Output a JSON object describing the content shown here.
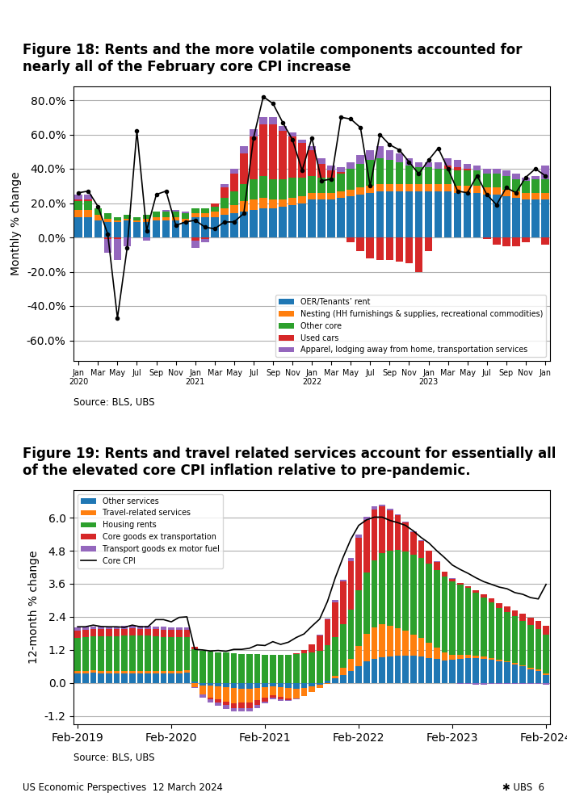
{
  "chart_data": [
    {
      "type": "bar",
      "stacked": true,
      "title": "Figure 18: Rents and the more volatile components accounted for nearly all of the February core CPI increase",
      "ylabel": "Monthly % change",
      "annotations": [
        "Source: BLS, UBS"
      ],
      "categories": [
        "Jan\n2020",
        null,
        "Mar",
        null,
        "May",
        null,
        "Jul",
        null,
        "Sep",
        null,
        "Nov",
        null,
        "Jan\n2021",
        null,
        "Mar",
        null,
        "May",
        null,
        "Jul",
        null,
        "Sep",
        null,
        "Nov",
        null,
        "Jan\n2022",
        null,
        "Mar",
        null,
        "May",
        null,
        "Jul",
        null,
        "Sep",
        null,
        "Nov",
        null,
        "Jan\n2023",
        null,
        "Mar",
        null,
        "May",
        null,
        "Jul",
        null,
        "Sep",
        null,
        "Nov",
        null,
        "Jan"
      ],
      "ylim": [
        -0.72,
        0.88
      ],
      "yticks": [
        {
          "value": -0.6,
          "label": "-60.0%"
        },
        {
          "value": -0.4,
          "label": "-40.0%"
        },
        {
          "value": -0.2,
          "label": "-20.0%"
        },
        {
          "value": 0.0,
          "label": "0.0%"
        },
        {
          "value": 0.2,
          "label": "20.0%"
        },
        {
          "value": 0.4,
          "label": "40.0%"
        },
        {
          "value": 0.6,
          "label": "60.0%"
        },
        {
          "value": 0.8,
          "label": "80.0%"
        }
      ],
      "grid": true,
      "legend": "lower right",
      "series": [
        {
          "name": "OER/Tenants’ rent",
          "type": "bar",
          "color": "#1f77b4",
          "values": [
            0.12,
            0.12,
            0.1,
            0.09,
            0.09,
            0.1,
            0.09,
            0.09,
            0.1,
            0.1,
            0.1,
            0.09,
            0.12,
            0.12,
            0.12,
            0.13,
            0.14,
            0.15,
            0.16,
            0.17,
            0.17,
            0.18,
            0.19,
            0.2,
            0.22,
            0.22,
            0.22,
            0.23,
            0.24,
            0.25,
            0.26,
            0.27,
            0.27,
            0.27,
            0.27,
            0.27,
            0.27,
            0.27,
            0.27,
            0.26,
            0.26,
            0.26,
            0.25,
            0.25,
            0.24,
            0.23,
            0.22,
            0.22,
            0.22
          ]
        },
        {
          "name": "Nesting (HH furnishings & supplies, recreational commodities)",
          "type": "bar",
          "color": "#ff7f0e",
          "values": [
            0.04,
            0.04,
            0.03,
            0.02,
            0.01,
            0.01,
            0.01,
            0.02,
            0.02,
            0.02,
            0.02,
            0.02,
            0.02,
            0.02,
            0.03,
            0.04,
            0.05,
            0.06,
            0.06,
            0.06,
            0.05,
            0.04,
            0.04,
            0.04,
            0.04,
            0.04,
            0.04,
            0.04,
            0.04,
            0.04,
            0.04,
            0.04,
            0.04,
            0.04,
            0.04,
            0.04,
            0.04,
            0.04,
            0.04,
            0.04,
            0.04,
            0.04,
            0.04,
            0.04,
            0.04,
            0.04,
            0.04,
            0.04,
            0.04
          ]
        },
        {
          "name": "Other core",
          "type": "bar",
          "color": "#2ca02c",
          "values": [
            0.05,
            0.05,
            0.04,
            0.03,
            0.02,
            0.02,
            0.02,
            0.02,
            0.03,
            0.03,
            0.03,
            0.03,
            0.03,
            0.03,
            0.03,
            0.06,
            0.08,
            0.1,
            0.12,
            0.13,
            0.12,
            0.12,
            0.12,
            0.11,
            0.1,
            0.09,
            0.09,
            0.1,
            0.12,
            0.14,
            0.15,
            0.15,
            0.14,
            0.13,
            0.11,
            0.1,
            0.1,
            0.09,
            0.09,
            0.09,
            0.09,
            0.09,
            0.08,
            0.08,
            0.08,
            0.07,
            0.07,
            0.08,
            0.08
          ]
        },
        {
          "name": "Used cars",
          "type": "bar",
          "color": "#d62728",
          "values": [
            0.01,
            0.01,
            0.0,
            -0.01,
            -0.01,
            0.0,
            0.0,
            0.0,
            0.0,
            0.0,
            0.0,
            0.0,
            -0.02,
            -0.01,
            0.02,
            0.06,
            0.1,
            0.18,
            0.25,
            0.3,
            0.32,
            0.28,
            0.24,
            0.2,
            0.15,
            0.08,
            0.04,
            0.01,
            -0.03,
            -0.08,
            -0.12,
            -0.13,
            -0.13,
            -0.14,
            -0.15,
            -0.2,
            -0.08,
            0.0,
            0.02,
            0.02,
            0.01,
            0.0,
            -0.01,
            -0.04,
            -0.05,
            -0.05,
            -0.03,
            0.0,
            -0.04
          ]
        },
        {
          "name": "Apparel, lodging away from home, transportation services",
          "type": "bar",
          "color": "#9467bd",
          "values": [
            0.03,
            0.03,
            0.0,
            -0.08,
            -0.12,
            -0.05,
            0.0,
            -0.02,
            0.0,
            0.01,
            0.01,
            0.01,
            -0.04,
            -0.02,
            0.0,
            0.02,
            0.03,
            0.04,
            0.04,
            0.04,
            0.04,
            0.03,
            0.02,
            0.02,
            0.02,
            0.03,
            0.03,
            0.03,
            0.04,
            0.05,
            0.06,
            0.07,
            0.06,
            0.05,
            0.04,
            0.03,
            0.03,
            0.04,
            0.04,
            0.04,
            0.03,
            0.03,
            0.03,
            0.03,
            0.03,
            0.03,
            0.02,
            0.02,
            0.08
          ]
        },
        {
          "type": "line",
          "color": "#000000",
          "marker": "circle",
          "values": [
            0.26,
            0.27,
            0.18,
            0.02,
            -0.47,
            -0.06,
            0.62,
            0.04,
            0.25,
            0.27,
            0.07,
            0.09,
            0.1,
            0.06,
            0.05,
            0.09,
            0.09,
            0.14,
            0.58,
            0.82,
            0.78,
            0.67,
            0.57,
            0.39,
            0.58,
            0.33,
            0.34,
            0.7,
            0.69,
            0.64,
            0.3,
            0.6,
            0.54,
            0.51,
            0.44,
            0.37,
            0.45,
            0.52,
            0.4,
            0.27,
            0.26,
            0.36,
            0.25,
            0.19,
            0.29,
            0.26,
            0.35,
            0.4,
            0.36
          ]
        }
      ]
    },
    {
      "type": "bar",
      "stacked": true,
      "title": "Figure 19: Rents and travel related services account for essentially all of the elevated core CPI inflation relative to pre-pandemic.",
      "ylabel": "12-month % change",
      "annotations": [
        "Source: BLS, UBS",
        "US Economic Perspectives  12 March 2024",
        "✱ UBS  6"
      ],
      "categories": [
        "Feb-2019",
        null,
        null,
        null,
        null,
        null,
        null,
        null,
        null,
        null,
        null,
        null,
        "Feb-2020",
        null,
        null,
        null,
        null,
        null,
        null,
        null,
        null,
        null,
        null,
        null,
        "Feb-2021",
        null,
        null,
        null,
        null,
        null,
        null,
        null,
        null,
        null,
        null,
        null,
        "Feb-2022",
        null,
        null,
        null,
        null,
        null,
        null,
        null,
        null,
        null,
        null,
        null,
        "Feb-2023",
        null,
        null,
        null,
        null,
        null,
        null,
        null,
        null,
        null,
        null,
        null,
        "Feb-2024"
      ],
      "ylim": [
        -1.5,
        7.0
      ],
      "yticks": [
        -1.2,
        {
          "value": 0.0,
          "label": "0.0"
        },
        1.2,
        2.4,
        3.6,
        4.8,
        {
          "value": 6.0,
          "label": "6.0"
        }
      ],
      "grid": true,
      "legend": "upper left",
      "series": [
        {
          "name": "Other services",
          "type": "bar",
          "color": "#1f77b4",
          "values": [
            0.35,
            0.36,
            0.37,
            0.36,
            0.35,
            0.35,
            0.35,
            0.36,
            0.35,
            0.36,
            0.35,
            0.35,
            0.35,
            0.36,
            0.38,
            0.04,
            -0.08,
            -0.1,
            -0.12,
            -0.15,
            -0.18,
            -0.2,
            -0.2,
            -0.18,
            -0.15,
            -0.12,
            -0.15,
            -0.18,
            -0.2,
            -0.18,
            -0.12,
            -0.05,
            0.08,
            0.18,
            0.3,
            0.42,
            0.62,
            0.78,
            0.88,
            0.94,
            0.95,
            0.98,
            1.0,
            0.98,
            0.95,
            0.9,
            0.86,
            0.82,
            0.85,
            0.88,
            0.9,
            0.9,
            0.88,
            0.85,
            0.8,
            0.75,
            0.68,
            0.6,
            0.5,
            0.42,
            0.28
          ]
        },
        {
          "name": "Travel-related services",
          "type": "bar",
          "color": "#ff7f0e",
          "values": [
            0.08,
            0.08,
            0.08,
            0.08,
            0.08,
            0.08,
            0.08,
            0.08,
            0.08,
            0.08,
            0.08,
            0.08,
            0.08,
            0.08,
            0.08,
            -0.15,
            -0.35,
            -0.42,
            -0.48,
            -0.52,
            -0.55,
            -0.52,
            -0.5,
            -0.45,
            -0.38,
            -0.32,
            -0.35,
            -0.38,
            -0.35,
            -0.28,
            -0.2,
            -0.12,
            -0.04,
            0.08,
            0.25,
            0.45,
            0.72,
            1.0,
            1.15,
            1.18,
            1.12,
            1.02,
            0.9,
            0.78,
            0.68,
            0.56,
            0.42,
            0.28,
            0.18,
            0.14,
            0.12,
            0.1,
            0.08,
            0.06,
            0.05,
            0.05,
            0.04,
            0.04,
            0.05,
            0.06,
            0.06
          ]
        },
        {
          "name": "Housing rents",
          "type": "bar",
          "color": "#2ca02c",
          "values": [
            1.2,
            1.22,
            1.24,
            1.25,
            1.26,
            1.27,
            1.28,
            1.29,
            1.28,
            1.27,
            1.26,
            1.25,
            1.24,
            1.22,
            1.2,
            1.18,
            1.16,
            1.14,
            1.12,
            1.1,
            1.08,
            1.06,
            1.05,
            1.04,
            1.03,
            1.02,
            1.02,
            1.03,
            1.05,
            1.08,
            1.12,
            1.18,
            1.28,
            1.4,
            1.58,
            1.78,
            2.02,
            2.22,
            2.42,
            2.6,
            2.72,
            2.82,
            2.88,
            2.9,
            2.9,
            2.88,
            2.82,
            2.75,
            2.65,
            2.54,
            2.42,
            2.28,
            2.14,
            2.02,
            1.88,
            1.78,
            1.7,
            1.62,
            1.55,
            1.48,
            1.42
          ]
        },
        {
          "name": "Core goods ex transportation",
          "type": "bar",
          "color": "#d62728",
          "values": [
            0.28,
            0.28,
            0.26,
            0.26,
            0.26,
            0.26,
            0.26,
            0.26,
            0.26,
            0.26,
            0.26,
            0.26,
            0.26,
            0.26,
            0.26,
            0.1,
            0.0,
            -0.06,
            -0.1,
            -0.14,
            -0.18,
            -0.2,
            -0.2,
            -0.18,
            -0.14,
            -0.1,
            -0.08,
            -0.05,
            0.02,
            0.12,
            0.28,
            0.55,
            0.95,
            1.28,
            1.55,
            1.78,
            1.9,
            1.92,
            1.85,
            1.68,
            1.48,
            1.26,
            1.05,
            0.82,
            0.62,
            0.45,
            0.3,
            0.18,
            0.1,
            0.08,
            0.08,
            0.1,
            0.12,
            0.15,
            0.18,
            0.2,
            0.22,
            0.25,
            0.28,
            0.3,
            0.32
          ]
        },
        {
          "name": "Transport goods ex motor fuel",
          "type": "bar",
          "color": "#9467bd",
          "values": [
            0.1,
            0.1,
            0.1,
            0.1,
            0.1,
            0.1,
            0.1,
            0.1,
            0.1,
            0.1,
            0.1,
            0.1,
            0.1,
            0.1,
            0.1,
            -0.02,
            -0.1,
            -0.12,
            -0.12,
            -0.12,
            -0.12,
            -0.12,
            -0.12,
            -0.1,
            -0.08,
            -0.06,
            -0.06,
            -0.05,
            -0.04,
            -0.02,
            0.0,
            0.02,
            0.04,
            0.06,
            0.08,
            0.1,
            0.12,
            0.12,
            0.1,
            0.08,
            0.06,
            0.05,
            0.04,
            0.03,
            0.02,
            0.02,
            0.02,
            0.02,
            0.02,
            -0.02,
            -0.04,
            -0.05,
            -0.05,
            -0.04,
            -0.04,
            -0.04,
            -0.04,
            -0.04,
            -0.04,
            -0.04,
            -0.05
          ]
        },
        {
          "name": "Core CPI",
          "type": "line",
          "color": "#000000",
          "values": [
            2.04,
            2.04,
            2.1,
            2.05,
            2.04,
            2.04,
            2.02,
            2.1,
            2.04,
            2.04,
            2.3,
            2.3,
            2.22,
            2.38,
            2.4,
            1.22,
            1.2,
            1.16,
            1.18,
            1.15,
            1.22,
            1.22,
            1.26,
            1.38,
            1.36,
            1.5,
            1.4,
            1.48,
            1.65,
            1.78,
            2.06,
            2.32,
            2.96,
            3.82,
            4.56,
            5.22,
            5.72,
            5.92,
            6.02,
            6.02,
            5.9,
            5.82,
            5.72,
            5.52,
            5.28,
            5.08,
            4.8,
            4.55,
            4.28,
            4.12,
            3.98,
            3.82,
            3.68,
            3.58,
            3.48,
            3.42,
            3.28,
            3.22,
            3.1,
            3.05,
            3.58
          ]
        }
      ]
    }
  ]
}
